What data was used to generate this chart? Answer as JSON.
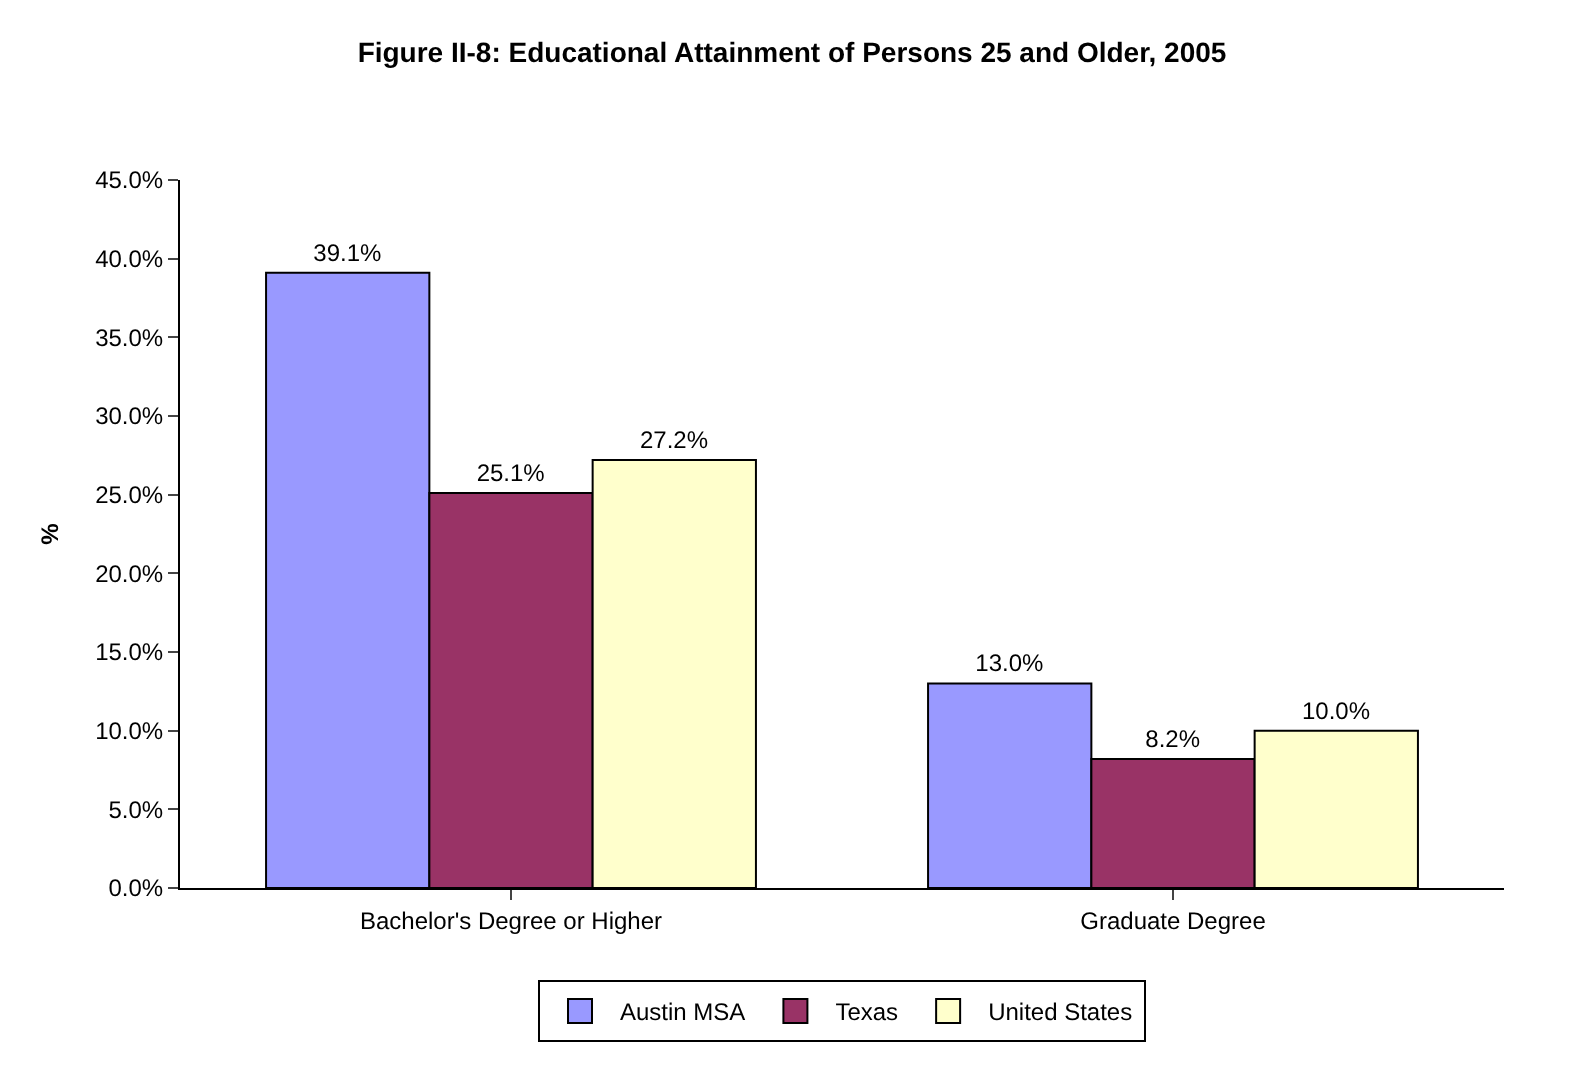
{
  "chart_data": {
    "type": "bar",
    "title": "Figure II-8: Educational Attainment of Persons 25 and Older, 2005",
    "ylabel": "%",
    "categories": [
      "Bachelor's Degree or Higher",
      "Graduate Degree"
    ],
    "series": [
      {
        "name": "Austin MSA",
        "color": "#9999ff",
        "values": [
          39.1,
          13.0
        ],
        "value_labels": [
          "39.1%",
          "13.0%"
        ]
      },
      {
        "name": "Texas",
        "color": "#993366",
        "values": [
          25.1,
          8.2
        ],
        "value_labels": [
          "25.1%",
          "8.2%"
        ]
      },
      {
        "name": "United States",
        "color": "#ffffcc",
        "values": [
          27.2,
          10.0
        ],
        "value_labels": [
          "27.2%",
          "10.0%"
        ]
      }
    ],
    "ylim": [
      0,
      45
    ],
    "yticks": [
      {
        "value": 0,
        "label": "0.0%"
      },
      {
        "value": 5,
        "label": "5.0%"
      },
      {
        "value": 10,
        "label": "10.0%"
      },
      {
        "value": 15,
        "label": "15.0%"
      },
      {
        "value": 20,
        "label": "20.0%"
      },
      {
        "value": 25,
        "label": "25.0%"
      },
      {
        "value": 30,
        "label": "30.0%"
      },
      {
        "value": 35,
        "label": "35.0%"
      },
      {
        "value": 40,
        "label": "40.0%"
      },
      {
        "value": 45,
        "label": "45.0%"
      }
    ],
    "grid": false,
    "legend": "bottom"
  }
}
